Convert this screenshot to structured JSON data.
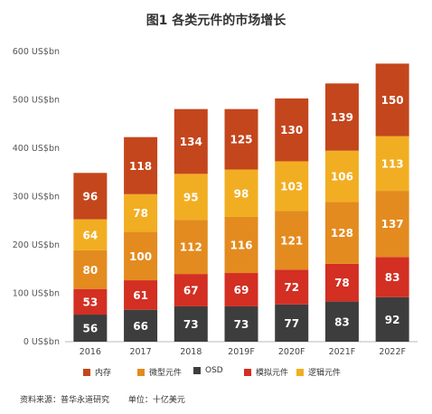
{
  "chart_data": {
    "type": "bar",
    "stacked": true,
    "title": "图1 各类元件的市场增长",
    "categories": [
      "2016",
      "2017",
      "2018",
      "2019F",
      "2020F",
      "2021F",
      "2022F"
    ],
    "y_tick_labels": [
      "0 US$bn",
      "100 US$bn",
      "200 US$bn",
      "300 US$bn",
      "400 US$bn",
      "500 US$bn",
      "600 US$bn"
    ],
    "ylim": [
      0,
      600
    ],
    "y_tick_step": 100,
    "grid": false,
    "legend_position": "bottom",
    "series": [
      {
        "name": "OSD",
        "color": "#3d3d3d",
        "values": [
          56,
          66,
          73,
          73,
          77,
          83,
          92
        ]
      },
      {
        "name": "模拟元件",
        "color": "#d32f23",
        "values": [
          53,
          61,
          67,
          69,
          72,
          78,
          83
        ]
      },
      {
        "name": "微型元件",
        "color": "#e38b1f",
        "values": [
          80,
          100,
          112,
          116,
          121,
          128,
          137
        ]
      },
      {
        "name": "逻辑元件",
        "color": "#f2ae22",
        "values": [
          64,
          78,
          95,
          98,
          103,
          106,
          113
        ]
      },
      {
        "name": "内存",
        "color": "#c4461c",
        "values": [
          96,
          118,
          134,
          125,
          130,
          139,
          150
        ]
      }
    ],
    "legend_order": [
      "内存",
      "微型元件",
      "OSD",
      "模拟元件",
      "逻辑元件"
    ]
  },
  "footer": {
    "source": "资料来源：普华永道研究",
    "unit": "单位：十亿美元"
  }
}
